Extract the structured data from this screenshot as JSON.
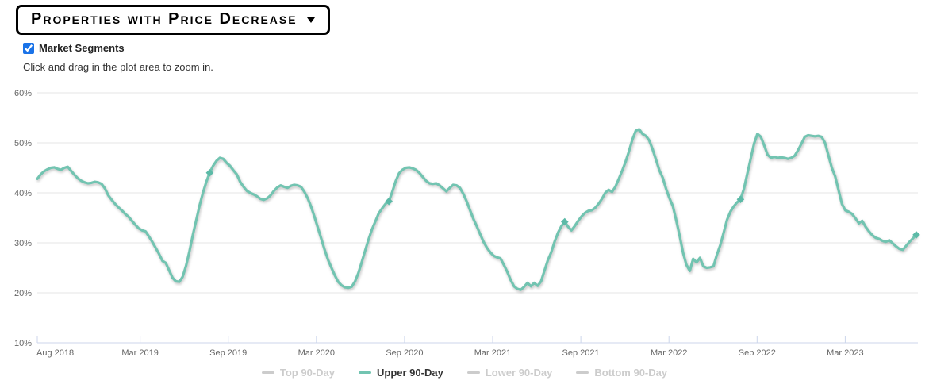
{
  "header": {
    "title": "Properties with Price Decrease"
  },
  "controls": {
    "market_segments_label": "Market Segments",
    "market_segments_checked": true,
    "checkbox_color": "#1a73e8",
    "hint": "Click and drag in the plot area to zoom in."
  },
  "chart_data": {
    "type": "line",
    "series_name": "Upper 90-Day",
    "unit": "%",
    "x_tick_labels": [
      "Aug 2018",
      "Mar 2019",
      "Sep 2019",
      "Mar 2020",
      "Sep 2020",
      "Mar 2021",
      "Sep 2021",
      "Mar 2022",
      "Sep 2022",
      "Mar 2023"
    ],
    "x_tick_month_offsets": [
      0,
      7,
      13,
      19,
      25,
      31,
      37,
      43,
      49,
      55
    ],
    "x_edge_tick_month_offset": 61,
    "y_ticks": [
      10,
      20,
      30,
      40,
      50,
      60
    ],
    "y_tick_labels": [
      "10%",
      "20%",
      "30%",
      "40%",
      "50%",
      "60%"
    ],
    "ylim": [
      10,
      60
    ],
    "grid": true,
    "x_resolution": "weekly",
    "values_weekly_pct": [
      42.8,
      43.7,
      44.3,
      44.7,
      45.0,
      45.1,
      44.8,
      44.6,
      45.0,
      45.2,
      44.4,
      43.6,
      42.9,
      42.4,
      42.1,
      41.9,
      42.0,
      42.2,
      42.1,
      41.8,
      40.9,
      39.5,
      38.6,
      37.8,
      37.1,
      36.5,
      35.8,
      35.2,
      34.4,
      33.6,
      32.9,
      32.5,
      32.3,
      31.3,
      30.2,
      29.0,
      27.8,
      26.4,
      26.0,
      24.5,
      23.0,
      22.3,
      22.2,
      23.2,
      25.4,
      28.3,
      31.5,
      34.5,
      37.5,
      40.0,
      42.2,
      44.0,
      45.4,
      46.4,
      47.0,
      46.8,
      46.0,
      45.4,
      44.5,
      43.7,
      42.2,
      41.2,
      40.4,
      40.0,
      39.7,
      39.3,
      38.8,
      38.6,
      38.9,
      39.5,
      40.4,
      41.1,
      41.5,
      41.2,
      41.0,
      41.4,
      41.6,
      41.5,
      41.2,
      40.2,
      38.9,
      37.2,
      35.2,
      33.0,
      30.8,
      28.6,
      26.6,
      25.0,
      23.5,
      22.2,
      21.5,
      21.1,
      21.0,
      21.2,
      22.3,
      24.0,
      26.2,
      28.5,
      30.7,
      32.7,
      34.3,
      35.9,
      36.9,
      37.8,
      38.3,
      40.2,
      42.3,
      43.9,
      44.6,
      45.0,
      45.1,
      44.9,
      44.6,
      44.0,
      43.2,
      42.4,
      41.9,
      41.8,
      41.9,
      41.5,
      40.9,
      40.3,
      41.0,
      41.6,
      41.5,
      41.0,
      39.8,
      38.3,
      36.5,
      34.8,
      33.3,
      31.7,
      30.2,
      29.0,
      28.1,
      27.4,
      27.1,
      26.9,
      25.6,
      24.2,
      22.6,
      21.3,
      20.8,
      20.6,
      21.2,
      22.0,
      21.3,
      22.0,
      21.4,
      22.3,
      24.4,
      26.5,
      28.1,
      30.2,
      32.0,
      33.3,
      34.2,
      33.2,
      32.5,
      33.4,
      34.4,
      35.3,
      36.0,
      36.4,
      36.5,
      37.0,
      37.8,
      38.8,
      40.0,
      40.6,
      40.2,
      41.2,
      42.8,
      44.4,
      46.2,
      48.3,
      50.6,
      52.4,
      52.7,
      51.8,
      51.4,
      50.5,
      48.7,
      46.6,
      44.5,
      43.0,
      40.8,
      38.9,
      37.3,
      34.5,
      31.4,
      28.0,
      25.6,
      24.4,
      26.8,
      26.1,
      27.0,
      25.3,
      25.0,
      25.1,
      25.3,
      27.6,
      29.5,
      32.0,
      34.6,
      36.2,
      37.3,
      38.1,
      38.7,
      40.8,
      43.8,
      46.8,
      49.8,
      51.8,
      51.2,
      49.5,
      47.6,
      47.0,
      47.2,
      47.0,
      47.1,
      47.0,
      46.8,
      47.0,
      47.4,
      48.5,
      49.8,
      51.2,
      51.5,
      51.4,
      51.3,
      51.4,
      51.2,
      50.0,
      47.5,
      45.0,
      43.3,
      40.5,
      37.8,
      36.5,
      36.2,
      35.8,
      34.9,
      33.9,
      34.4,
      33.2,
      32.3,
      31.5,
      31.0,
      30.8,
      30.4,
      30.2,
      30.5,
      29.9,
      29.3,
      28.8,
      28.6,
      29.4,
      30.2,
      30.9,
      31.6
    ],
    "marker_indices": [
      51,
      104,
      156,
      208,
      260
    ],
    "marker_values": [
      44.0,
      38.3,
      34.2,
      38.7,
      31.6
    ],
    "line_color": "#72c4b1",
    "marker_color": "#5cbaa7",
    "grid_color": "#e6e6e6",
    "axis_color": "#ccd6eb",
    "label_color": "#666666",
    "legend_position": "bottom"
  },
  "legend": {
    "items": [
      {
        "label": "Top 90-Day",
        "active": false
      },
      {
        "label": "Upper 90-Day",
        "active": true
      },
      {
        "label": "Lower 90-Day",
        "active": false
      },
      {
        "label": "Bottom 90-Day",
        "active": false
      }
    ],
    "active_color": "#72c4b1",
    "inactive_color": "#cccccc",
    "active_text_color": "#333333"
  }
}
